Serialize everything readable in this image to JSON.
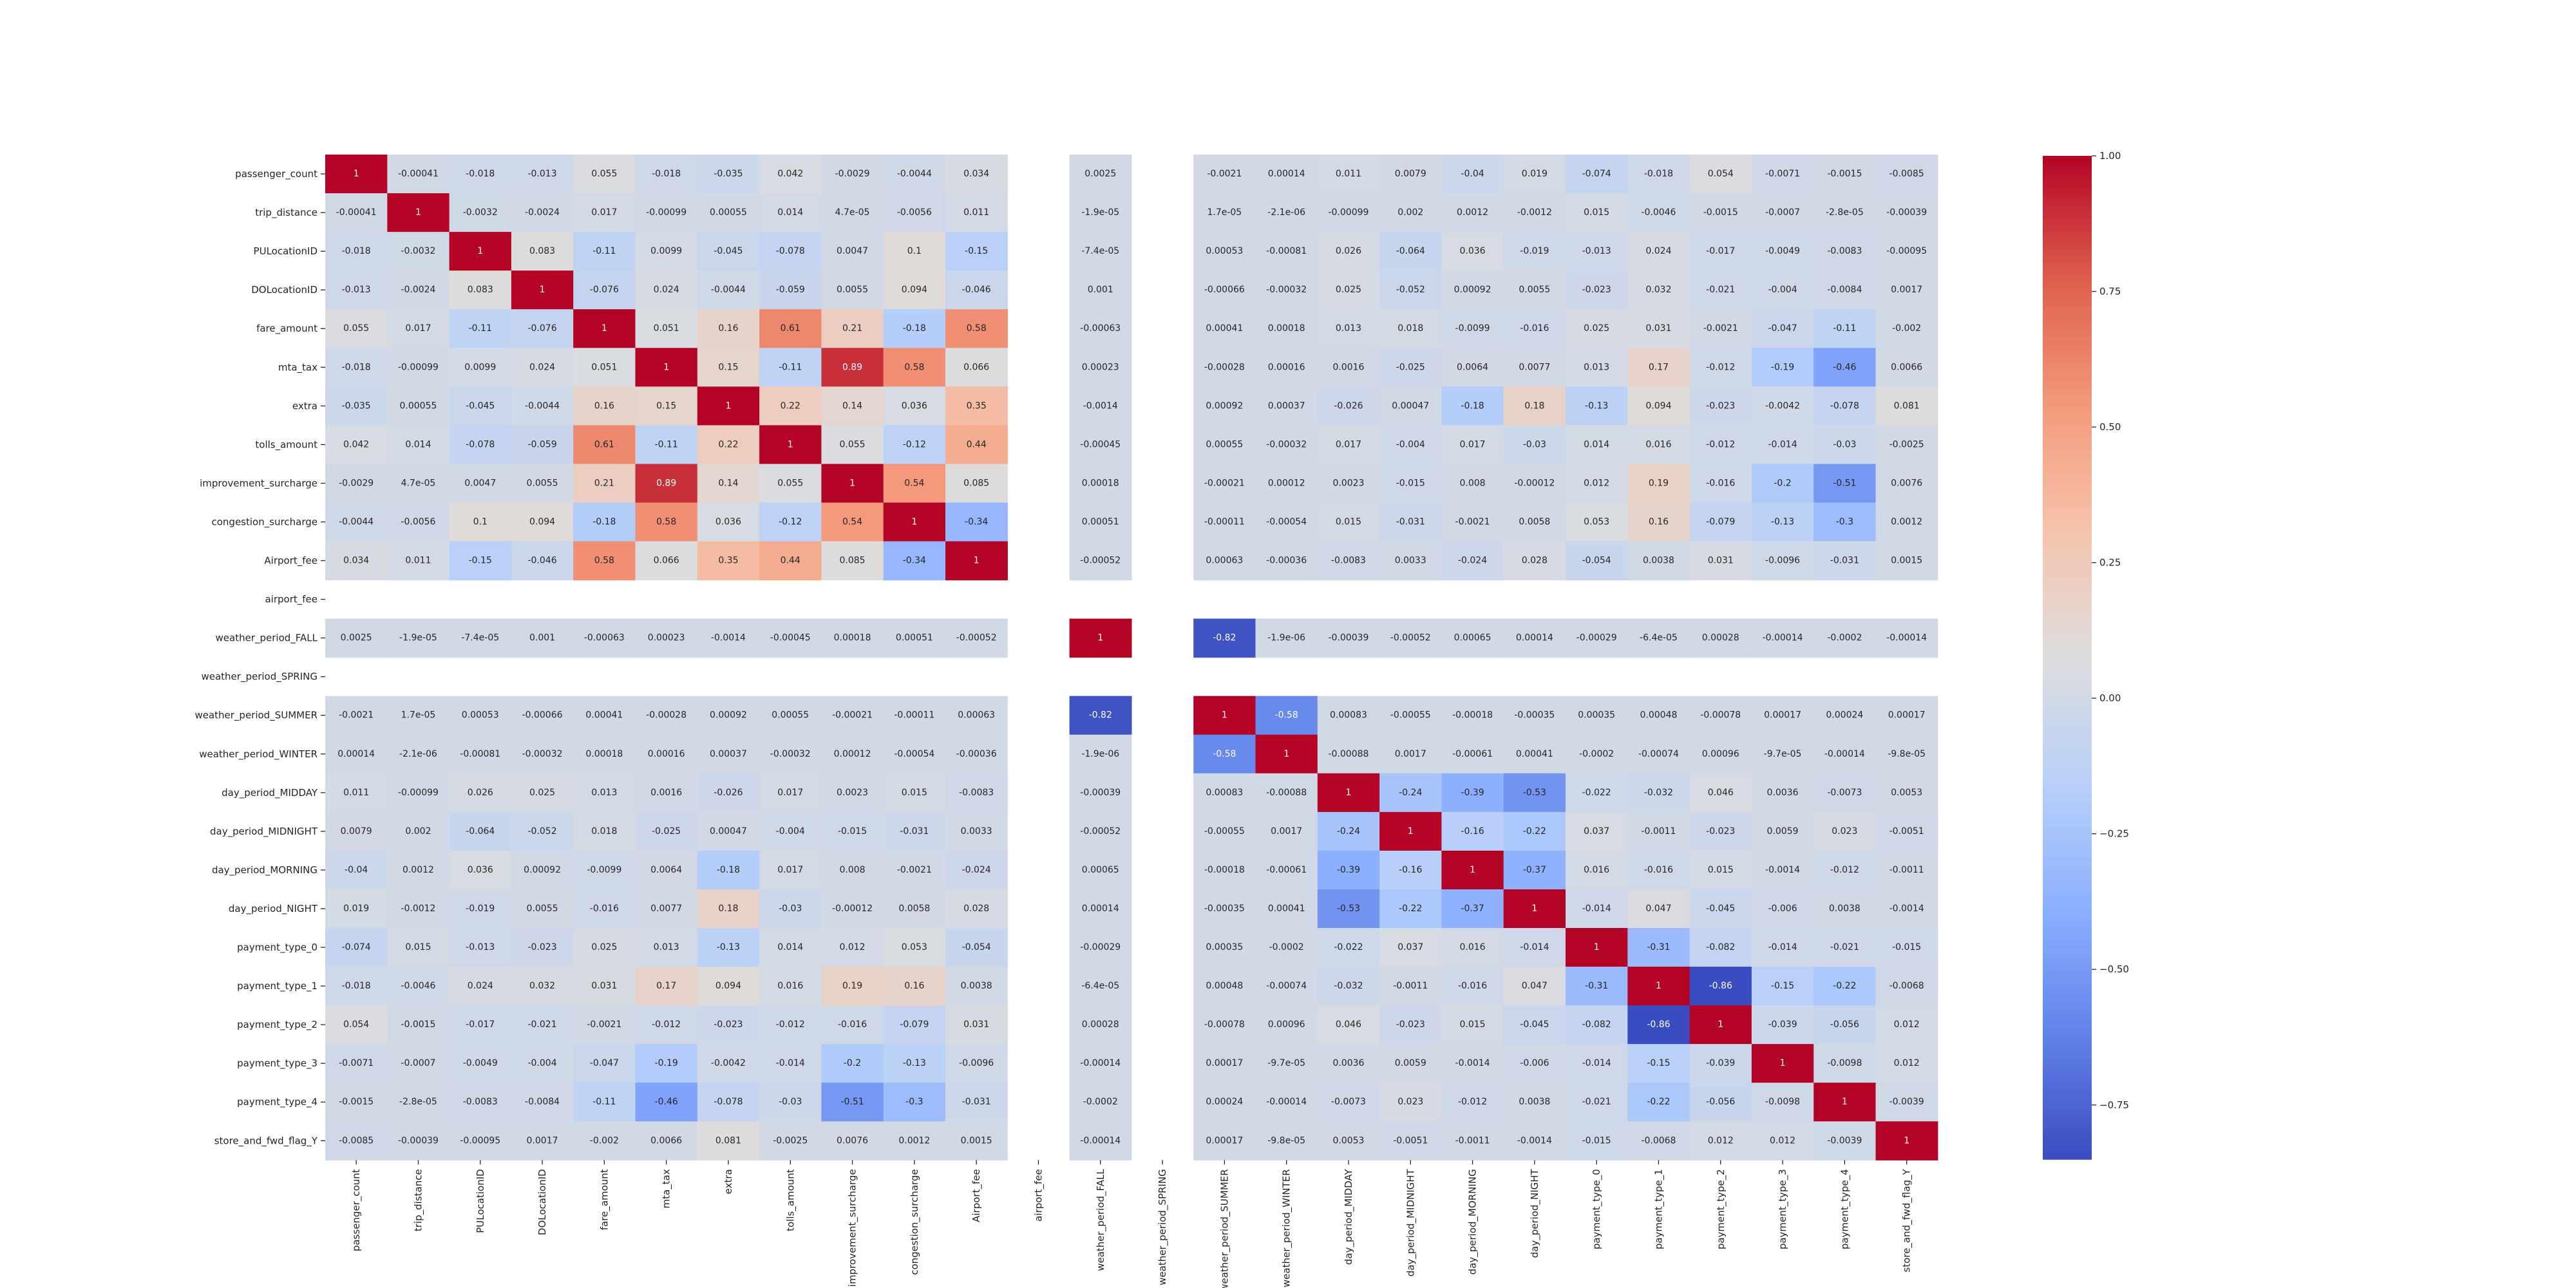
{
  "chart_data": {
    "type": "heatmap",
    "title": "",
    "colormap": "coolwarm",
    "color_range": [
      -0.85,
      1.0
    ],
    "labels": [
      "passenger_count",
      "trip_distance",
      "PULocationID",
      "DOLocationID",
      "fare_amount",
      "mta_tax",
      "extra",
      "tolls_amount",
      "improvement_surcharge",
      "congestion_surcharge",
      "Airport_fee",
      "airport_fee",
      "weather_period_FALL",
      "weather_period_SPRING",
      "weather_period_SUMMER",
      "weather_period_WINTER",
      "day_period_MIDDAY",
      "day_period_MIDNIGHT",
      "day_period_MORNING",
      "day_period_NIGHT",
      "payment_type_0",
      "payment_type_1",
      "payment_type_2",
      "payment_type_3",
      "payment_type_4",
      "store_and_fwd_flag_Y"
    ],
    "colorbar_ticks": [
      "1.00",
      "0.75",
      "0.50",
      "0.25",
      "0.00",
      "−0.25",
      "−0.50",
      "−0.75"
    ],
    "colorbar_tick_values": [
      1.0,
      0.75,
      0.5,
      0.25,
      0.0,
      -0.25,
      -0.5,
      -0.75
    ],
    "matrix": [
      [
        "1",
        "-0.00041",
        "-0.018",
        "-0.013",
        "0.055",
        "-0.018",
        "-0.035",
        "0.042",
        "-0.0029",
        "-0.0044",
        "0.034",
        null,
        "0.0025",
        null,
        "-0.0021",
        "0.00014",
        "0.011",
        "0.0079",
        "-0.04",
        "0.019",
        "-0.074",
        "-0.018",
        "0.054",
        "-0.0071",
        "-0.0015",
        "-0.0085"
      ],
      [
        "-0.00041",
        "1",
        "-0.0032",
        "-0.0024",
        "0.017",
        "-0.00099",
        "0.00055",
        "0.014",
        "4.7e-05",
        "-0.0056",
        "0.011",
        null,
        "-1.9e-05",
        null,
        "1.7e-05",
        "-2.1e-06",
        "-0.00099",
        "0.002",
        "0.0012",
        "-0.0012",
        "0.015",
        "-0.0046",
        "-0.0015",
        "-0.0007",
        "-2.8e-05",
        "-0.00039"
      ],
      [
        "-0.018",
        "-0.0032",
        "1",
        "0.083",
        "-0.11",
        "0.0099",
        "-0.045",
        "-0.078",
        "0.0047",
        "0.1",
        "-0.15",
        null,
        "-7.4e-05",
        null,
        "0.00053",
        "-0.00081",
        "0.026",
        "-0.064",
        "0.036",
        "-0.019",
        "-0.013",
        "0.024",
        "-0.017",
        "-0.0049",
        "-0.0083",
        "-0.00095"
      ],
      [
        "-0.013",
        "-0.0024",
        "0.083",
        "1",
        "-0.076",
        "0.024",
        "-0.0044",
        "-0.059",
        "0.0055",
        "0.094",
        "-0.046",
        null,
        "0.001",
        null,
        "-0.00066",
        "-0.00032",
        "0.025",
        "-0.052",
        "0.00092",
        "0.0055",
        "-0.023",
        "0.032",
        "-0.021",
        "-0.004",
        "-0.0084",
        "0.0017"
      ],
      [
        "0.055",
        "0.017",
        "-0.11",
        "-0.076",
        "1",
        "0.051",
        "0.16",
        "0.61",
        "0.21",
        "-0.18",
        "0.58",
        null,
        "-0.00063",
        null,
        "0.00041",
        "0.00018",
        "0.013",
        "0.018",
        "-0.0099",
        "-0.016",
        "0.025",
        "0.031",
        "-0.0021",
        "-0.047",
        "-0.11",
        "-0.002"
      ],
      [
        "-0.018",
        "-0.00099",
        "0.0099",
        "0.024",
        "0.051",
        "1",
        "0.15",
        "-0.11",
        "0.89",
        "0.58",
        "0.066",
        null,
        "0.00023",
        null,
        "-0.00028",
        "0.00016",
        "0.0016",
        "-0.025",
        "0.0064",
        "0.0077",
        "0.013",
        "0.17",
        "-0.012",
        "-0.19",
        "-0.46",
        "0.0066"
      ],
      [
        "-0.035",
        "0.00055",
        "-0.045",
        "-0.0044",
        "0.16",
        "0.15",
        "1",
        "0.22",
        "0.14",
        "0.036",
        "0.35",
        null,
        "-0.0014",
        null,
        "0.00092",
        "0.00037",
        "-0.026",
        "0.00047",
        "-0.18",
        "0.18",
        "-0.13",
        "0.094",
        "-0.023",
        "-0.0042",
        "-0.078",
        "0.081"
      ],
      [
        "0.042",
        "0.014",
        "-0.078",
        "-0.059",
        "0.61",
        "-0.11",
        "0.22",
        "1",
        "0.055",
        "-0.12",
        "0.44",
        null,
        "-0.00045",
        null,
        "0.00055",
        "-0.00032",
        "0.017",
        "-0.004",
        "0.017",
        "-0.03",
        "0.014",
        "0.016",
        "-0.012",
        "-0.014",
        "-0.03",
        "-0.0025"
      ],
      [
        "-0.0029",
        "4.7e-05",
        "0.0047",
        "0.0055",
        "0.21",
        "0.89",
        "0.14",
        "0.055",
        "1",
        "0.54",
        "0.085",
        null,
        "0.00018",
        null,
        "-0.00021",
        "0.00012",
        "0.0023",
        "-0.015",
        "0.008",
        "-0.00012",
        "0.012",
        "0.19",
        "-0.016",
        "-0.2",
        "-0.51",
        "0.0076"
      ],
      [
        "-0.0044",
        "-0.0056",
        "0.1",
        "0.094",
        "-0.18",
        "0.58",
        "0.036",
        "-0.12",
        "0.54",
        "1",
        "-0.34",
        null,
        "0.00051",
        null,
        "-0.00011",
        "-0.00054",
        "0.015",
        "-0.031",
        "-0.0021",
        "0.0058",
        "0.053",
        "0.16",
        "-0.079",
        "-0.13",
        "-0.3",
        "0.0012"
      ],
      [
        "0.034",
        "0.011",
        "-0.15",
        "-0.046",
        "0.58",
        "0.066",
        "0.35",
        "0.44",
        "0.085",
        "-0.34",
        "1",
        null,
        "-0.00052",
        null,
        "0.00063",
        "-0.00036",
        "-0.0083",
        "0.0033",
        "-0.024",
        "0.028",
        "-0.054",
        "0.0038",
        "0.031",
        "-0.0096",
        "-0.031",
        "0.0015"
      ],
      [
        null,
        null,
        null,
        null,
        null,
        null,
        null,
        null,
        null,
        null,
        null,
        null,
        null,
        null,
        null,
        null,
        null,
        null,
        null,
        null,
        null,
        null,
        null,
        null,
        null,
        null
      ],
      [
        "0.0025",
        "-1.9e-05",
        "-7.4e-05",
        "0.001",
        "-0.00063",
        "0.00023",
        "-0.0014",
        "-0.00045",
        "0.00018",
        "0.00051",
        "-0.00052",
        null,
        "1",
        null,
        "-0.82",
        "-1.9e-06",
        "-0.00039",
        "-0.00052",
        "0.00065",
        "0.00014",
        "-0.00029",
        "-6.4e-05",
        "0.00028",
        "-0.00014",
        "-0.0002",
        "-0.00014"
      ],
      [
        null,
        null,
        null,
        null,
        null,
        null,
        null,
        null,
        null,
        null,
        null,
        null,
        null,
        null,
        null,
        null,
        null,
        null,
        null,
        null,
        null,
        null,
        null,
        null,
        null,
        null
      ],
      [
        "-0.0021",
        "1.7e-05",
        "0.00053",
        "-0.00066",
        "0.00041",
        "-0.00028",
        "0.00092",
        "0.00055",
        "-0.00021",
        "-0.00011",
        "0.00063",
        null,
        "-0.82",
        null,
        "1",
        "-0.58",
        "0.00083",
        "-0.00055",
        "-0.00018",
        "-0.00035",
        "0.00035",
        "0.00048",
        "-0.00078",
        "0.00017",
        "0.00024",
        "0.00017"
      ],
      [
        "0.00014",
        "-2.1e-06",
        "-0.00081",
        "-0.00032",
        "0.00018",
        "0.00016",
        "0.00037",
        "-0.00032",
        "0.00012",
        "-0.00054",
        "-0.00036",
        null,
        "-1.9e-06",
        null,
        "-0.58",
        "1",
        "-0.00088",
        "0.0017",
        "-0.00061",
        "0.00041",
        "-0.0002",
        "-0.00074",
        "0.00096",
        "-9.7e-05",
        "-0.00014",
        "-9.8e-05"
      ],
      [
        "0.011",
        "-0.00099",
        "0.026",
        "0.025",
        "0.013",
        "0.0016",
        "-0.026",
        "0.017",
        "0.0023",
        "0.015",
        "-0.0083",
        null,
        "-0.00039",
        null,
        "0.00083",
        "-0.00088",
        "1",
        "-0.24",
        "-0.39",
        "-0.53",
        "-0.022",
        "-0.032",
        "0.046",
        "0.0036",
        "-0.0073",
        "0.0053"
      ],
      [
        "0.0079",
        "0.002",
        "-0.064",
        "-0.052",
        "0.018",
        "-0.025",
        "0.00047",
        "-0.004",
        "-0.015",
        "-0.031",
        "0.0033",
        null,
        "-0.00052",
        null,
        "-0.00055",
        "0.0017",
        "-0.24",
        "1",
        "-0.16",
        "-0.22",
        "0.037",
        "-0.0011",
        "-0.023",
        "0.0059",
        "0.023",
        "-0.0051"
      ],
      [
        "-0.04",
        "0.0012",
        "0.036",
        "0.00092",
        "-0.0099",
        "0.0064",
        "-0.18",
        "0.017",
        "0.008",
        "-0.0021",
        "-0.024",
        null,
        "0.00065",
        null,
        "-0.00018",
        "-0.00061",
        "-0.39",
        "-0.16",
        "1",
        "-0.37",
        "0.016",
        "-0.016",
        "0.015",
        "-0.0014",
        "-0.012",
        "-0.0011"
      ],
      [
        "0.019",
        "-0.0012",
        "-0.019",
        "0.0055",
        "-0.016",
        "0.0077",
        "0.18",
        "-0.03",
        "-0.00012",
        "0.0058",
        "0.028",
        null,
        "0.00014",
        null,
        "-0.00035",
        "0.00041",
        "-0.53",
        "-0.22",
        "-0.37",
        "1",
        "-0.014",
        "0.047",
        "-0.045",
        "-0.006",
        "0.0038",
        "-0.0014"
      ],
      [
        "-0.074",
        "0.015",
        "-0.013",
        "-0.023",
        "0.025",
        "0.013",
        "-0.13",
        "0.014",
        "0.012",
        "0.053",
        "-0.054",
        null,
        "-0.00029",
        null,
        "0.00035",
        "-0.0002",
        "-0.022",
        "0.037",
        "0.016",
        "-0.014",
        "1",
        "-0.31",
        "-0.082",
        "-0.014",
        "-0.021",
        "-0.015"
      ],
      [
        "-0.018",
        "-0.0046",
        "0.024",
        "0.032",
        "0.031",
        "0.17",
        "0.094",
        "0.016",
        "0.19",
        "0.16",
        "0.0038",
        null,
        "-6.4e-05",
        null,
        "0.00048",
        "-0.00074",
        "-0.032",
        "-0.0011",
        "-0.016",
        "0.047",
        "-0.31",
        "1",
        "-0.86",
        "-0.15",
        "-0.22",
        "-0.0068"
      ],
      [
        "0.054",
        "-0.0015",
        "-0.017",
        "-0.021",
        "-0.0021",
        "-0.012",
        "-0.023",
        "-0.012",
        "-0.016",
        "-0.079",
        "0.031",
        null,
        "0.00028",
        null,
        "-0.00078",
        "0.00096",
        "0.046",
        "-0.023",
        "0.015",
        "-0.045",
        "-0.082",
        "-0.86",
        "1",
        "-0.039",
        "-0.056",
        "0.012"
      ],
      [
        "-0.0071",
        "-0.0007",
        "-0.0049",
        "-0.004",
        "-0.047",
        "-0.19",
        "-0.0042",
        "-0.014",
        "-0.2",
        "-0.13",
        "-0.0096",
        null,
        "-0.00014",
        null,
        "0.00017",
        "-9.7e-05",
        "0.0036",
        "0.0059",
        "-0.0014",
        "-0.006",
        "-0.014",
        "-0.15",
        "-0.039",
        "1",
        "-0.0098",
        "0.012"
      ],
      [
        "-0.0015",
        "-2.8e-05",
        "-0.0083",
        "-0.0084",
        "-0.11",
        "-0.46",
        "-0.078",
        "-0.03",
        "-0.51",
        "-0.3",
        "-0.031",
        null,
        "-0.0002",
        null,
        "0.00024",
        "-0.00014",
        "-0.0073",
        "0.023",
        "-0.012",
        "0.0038",
        "-0.021",
        "-0.22",
        "-0.056",
        "-0.0098",
        "1",
        "-0.0039"
      ],
      [
        "-0.0085",
        "-0.00039",
        "-0.00095",
        "0.0017",
        "-0.002",
        "0.0066",
        "0.081",
        "-0.0025",
        "0.0076",
        "0.0012",
        "0.0015",
        null,
        "-0.00014",
        null,
        "0.00017",
        "-9.8e-05",
        "0.0053",
        "-0.0051",
        "-0.0011",
        "-0.0014",
        "-0.015",
        "-0.0068",
        "0.012",
        "0.012",
        "-0.0039",
        "1"
      ]
    ]
  }
}
